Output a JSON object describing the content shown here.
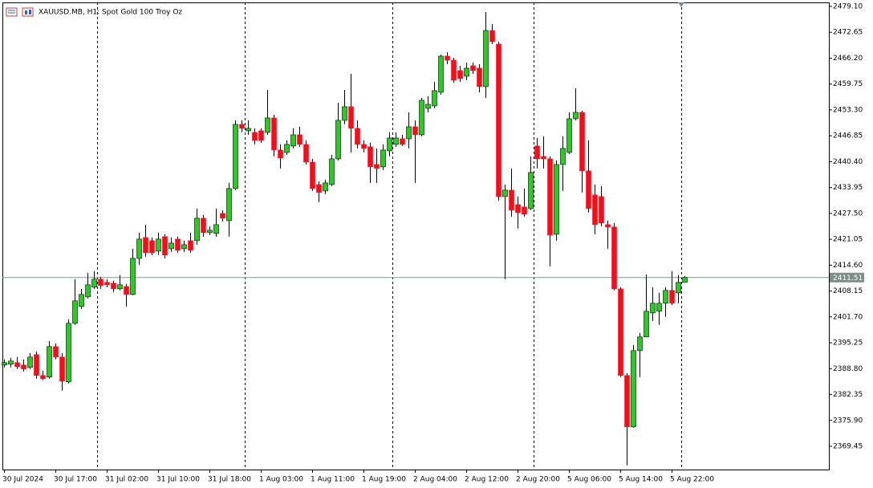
{
  "chart_data": {
    "type": "candlestick",
    "title": "XAUUSD.MB, H1:  Spot Gold 100 Troy Oz",
    "categories": [
      "30 Jul 2024",
      null,
      null,
      null,
      null,
      null,
      null,
      null,
      "30 Jul 17:00",
      null,
      null,
      null,
      null,
      null,
      null,
      null,
      "31 Jul 02:00",
      null,
      null,
      null,
      null,
      null,
      null,
      null,
      "31 Jul 10:00",
      null,
      null,
      null,
      null,
      null,
      null,
      null,
      "31 Jul 18:00",
      null,
      null,
      null,
      null,
      null,
      null,
      null,
      "1 Aug 03:00",
      null,
      null,
      null,
      null,
      null,
      null,
      null,
      "1 Aug 11:00",
      null,
      null,
      null,
      null,
      null,
      null,
      null,
      "1 Aug 19:00",
      null,
      null,
      null,
      null,
      null,
      null,
      null,
      "2 Aug 04:00",
      null,
      null,
      null,
      null,
      null,
      null,
      null,
      "2 Aug 12:00",
      null,
      null,
      null,
      null,
      null,
      null,
      null,
      "2 Aug 20:00",
      null,
      null,
      null,
      null,
      null,
      null,
      null,
      "5 Aug 06:00",
      null,
      null,
      null,
      null,
      null,
      null,
      null,
      "5 Aug 14:00",
      null,
      null,
      null,
      null,
      null,
      null,
      null,
      "5 Aug 22:00",
      null,
      null
    ],
    "open": [
      2389.7,
      2389.9,
      2390.3,
      2389.7,
      2389.1,
      2392.3,
      2387.1,
      2386.7,
      2394.3,
      2391.7,
      2385.5,
      2400.1,
      2404.3,
      2406.7,
      2409.1,
      2411.1,
      2410.3,
      2410.1,
      2408.7,
      2409.3,
      2407.3,
      2416.3,
      2421.5,
      2420.7,
      2418.1,
      2421.7,
      2418.7,
      2421.1,
      2418.7,
      2420.7,
      2420.7,
      2426.3,
      2422.7,
      2422.5,
      2427.5,
      2425.7,
      2433.7,
      2449.7,
      2448.1,
      2447.7,
      2448.1,
      2447.7,
      2451.3,
      2443.3,
      2442.7,
      2444.3,
      2447.1,
      2444.7,
      2440.3,
      2434.7,
      2433.1,
      2434.7,
      2441.1,
      2450.7,
      2454.1,
      2448.7,
      2444.7,
      2444.1,
      2439.7,
      2439.1,
      2443.1,
      2444.7,
      2446.1,
      2446.1,
      2449.1,
      2447.1,
      2453.7,
      2454.3,
      2457.7,
      2466.7,
      2465.7,
      2463.1,
      2461.7,
      2464.3,
      2463.7,
      2459.1,
      2473.1,
      2469.7,
      2431.7,
      2433.3,
      2429.7,
      2429.1,
      2428.7,
      2444.3,
      2441.7,
      2441.1,
      2422.3,
      2439.7,
      2442.7,
      2451.1,
      2452.7,
      2438.1,
      2432.1,
      2431.7,
      2424.7,
      2424.1,
      2408.7,
      2387.1,
      2374.3,
      2393.3,
      2396.7,
      2402.7,
      2403.1,
      2405.1,
      2408.3,
      2407.7,
      2410.3
    ],
    "high": [
      2391.1,
      2391.5,
      2391.7,
      2391.1,
      2392.7,
      2393.1,
      2388.3,
      2395.7,
      2395.1,
      2392.7,
      2401.1,
      2411.1,
      2408.7,
      2412.7,
      2413.1,
      2411.7,
      2411.1,
      2410.7,
      2412.1,
      2409.9,
      2418.7,
      2422.7,
      2424.7,
      2421.5,
      2422.7,
      2422.3,
      2421.5,
      2421.7,
      2420.7,
      2422.7,
      2428.7,
      2427.1,
      2424.3,
      2428.7,
      2428.3,
      2435.1,
      2450.7,
      2450.7,
      2450.7,
      2448.7,
      2448.7,
      2458.3,
      2452.1,
      2444.7,
      2445.7,
      2448.7,
      2449.1,
      2445.7,
      2441.1,
      2435.5,
      2435.9,
      2442.1,
      2455.1,
      2458.3,
      2462.3,
      2450.7,
      2445.7,
      2445.1,
      2443.7,
      2444.7,
      2447.7,
      2447.7,
      2447.1,
      2452.7,
      2450.7,
      2456.3,
      2456.7,
      2460.3,
      2467.1,
      2467.7,
      2466.3,
      2464.3,
      2465.1,
      2465.1,
      2464.7,
      2477.7,
      2474.7,
      2470.3,
      2434.7,
      2438.7,
      2431.7,
      2433.7,
      2441.7,
      2446.3,
      2446.7,
      2441.7,
      2440.7,
      2446.7,
      2452.7,
      2458.7,
      2453.1,
      2445.7,
      2434.7,
      2434.3,
      2425.7,
      2425.1,
      2409.1,
      2387.7,
      2394.7,
      2397.7,
      2412.3,
      2409.1,
      2407.7,
      2409.1,
      2413.1,
      2412.1,
      2411.9
    ],
    "low": [
      2389.1,
      2389.1,
      2388.7,
      2388.1,
      2388.7,
      2386.3,
      2385.9,
      2386.3,
      2391.1,
      2383.3,
      2385.1,
      2399.7,
      2403.7,
      2406.3,
      2408.7,
      2408.7,
      2409.1,
      2407.9,
      2408.3,
      2404.3,
      2407.1,
      2414.7,
      2416.7,
      2417.1,
      2417.1,
      2416.3,
      2417.9,
      2417.7,
      2417.9,
      2417.7,
      2419.7,
      2421.7,
      2422.1,
      2421.7,
      2425.5,
      2421.7,
      2433.3,
      2447.7,
      2447.1,
      2444.7,
      2445.1,
      2447.1,
      2441.7,
      2438.7,
      2442.1,
      2443.7,
      2444.1,
      2439.7,
      2433.1,
      2430.3,
      2432.3,
      2434.3,
      2440.7,
      2449.7,
      2442.7,
      2443.7,
      2442.7,
      2435.1,
      2435.1,
      2438.3,
      2441.7,
      2444.1,
      2444.3,
      2443.7,
      2435.1,
      2446.7,
      2452.7,
      2453.7,
      2457.1,
      2464.7,
      2460.1,
      2460.3,
      2460.7,
      2462.3,
      2457.7,
      2456.3,
      2469.7,
      2430.7,
      2411.1,
      2426.7,
      2423.7,
      2426.7,
      2428.3,
      2438.7,
      2438.7,
      2414.3,
      2420.7,
      2433.1,
      2442.3,
      2450.7,
      2432.7,
      2427.7,
      2422.3,
      2424.3,
      2418.7,
      2408.3,
      2386.7,
      2364.7,
      2374.1,
      2386.7,
      2396.7,
      2400.7,
      2399.7,
      2401.7,
      2404.7,
      2405.1,
      2410.3
    ],
    "close": [
      2390.3,
      2390.7,
      2389.3,
      2388.7,
      2391.7,
      2387.1,
      2386.3,
      2394.3,
      2391.7,
      2385.7,
      2400.1,
      2405.7,
      2407.3,
      2409.7,
      2411.1,
      2409.5,
      2409.7,
      2408.7,
      2409.7,
      2407.3,
      2416.3,
      2421.1,
      2417.7,
      2417.7,
      2421.1,
      2417.1,
      2420.1,
      2418.3,
      2419.7,
      2418.3,
      2426.3,
      2422.7,
      2423.3,
      2424.7,
      2426.3,
      2433.7,
      2449.7,
      2448.7,
      2448.7,
      2445.7,
      2445.7,
      2451.3,
      2443.3,
      2441.3,
      2444.7,
      2447.1,
      2444.7,
      2440.3,
      2433.7,
      2432.7,
      2435.1,
      2441.1,
      2450.7,
      2454.1,
      2448.7,
      2444.7,
      2443.7,
      2439.1,
      2438.7,
      2443.3,
      2446.3,
      2446.3,
      2444.7,
      2449.1,
      2447.1,
      2455.7,
      2454.7,
      2458.1,
      2466.7,
      2465.7,
      2460.7,
      2461.1,
      2463.7,
      2463.1,
      2459.1,
      2473.1,
      2470.3,
      2431.7,
      2433.3,
      2428.3,
      2427.7,
      2427.3,
      2437.7,
      2441.1,
      2441.1,
      2422.1,
      2439.7,
      2443.7,
      2451.1,
      2452.7,
      2438.1,
      2428.7,
      2424.7,
      2425.1,
      2424.1,
      2408.7,
      2387.1,
      2374.3,
      2393.3,
      2396.7,
      2403.1,
      2405.1,
      2405.1,
      2408.3,
      2405.1,
      2410.3,
      2411.51
    ],
    "up_color": "#22d022",
    "down_color": "#e8141c",
    "separators": [
      15,
      38,
      61,
      83,
      106
    ],
    "last_price": 2411.51,
    "ylim": [
      2363.65,
      2480.1
    ],
    "yticks": [
      {
        "value": 2479.1,
        "label": "2479.10"
      },
      2472.65,
      {
        "value": 2466.2,
        "label": "2466.20"
      },
      2459.75,
      {
        "value": 2453.3,
        "label": "2453.30"
      },
      2446.85,
      {
        "value": 2440.4,
        "label": "2440.40"
      },
      2433.95,
      {
        "value": 2427.5,
        "label": "2427.50"
      },
      2421.05,
      {
        "value": 2414.6,
        "label": "2414.60"
      },
      2408.15,
      {
        "value": 2401.7,
        "label": "2401.70"
      },
      2395.25,
      {
        "value": 2388.8,
        "label": "2388.80"
      },
      2382.35,
      {
        "value": 2375.9,
        "label": "2375.90"
      },
      2369.45
    ]
  }
}
